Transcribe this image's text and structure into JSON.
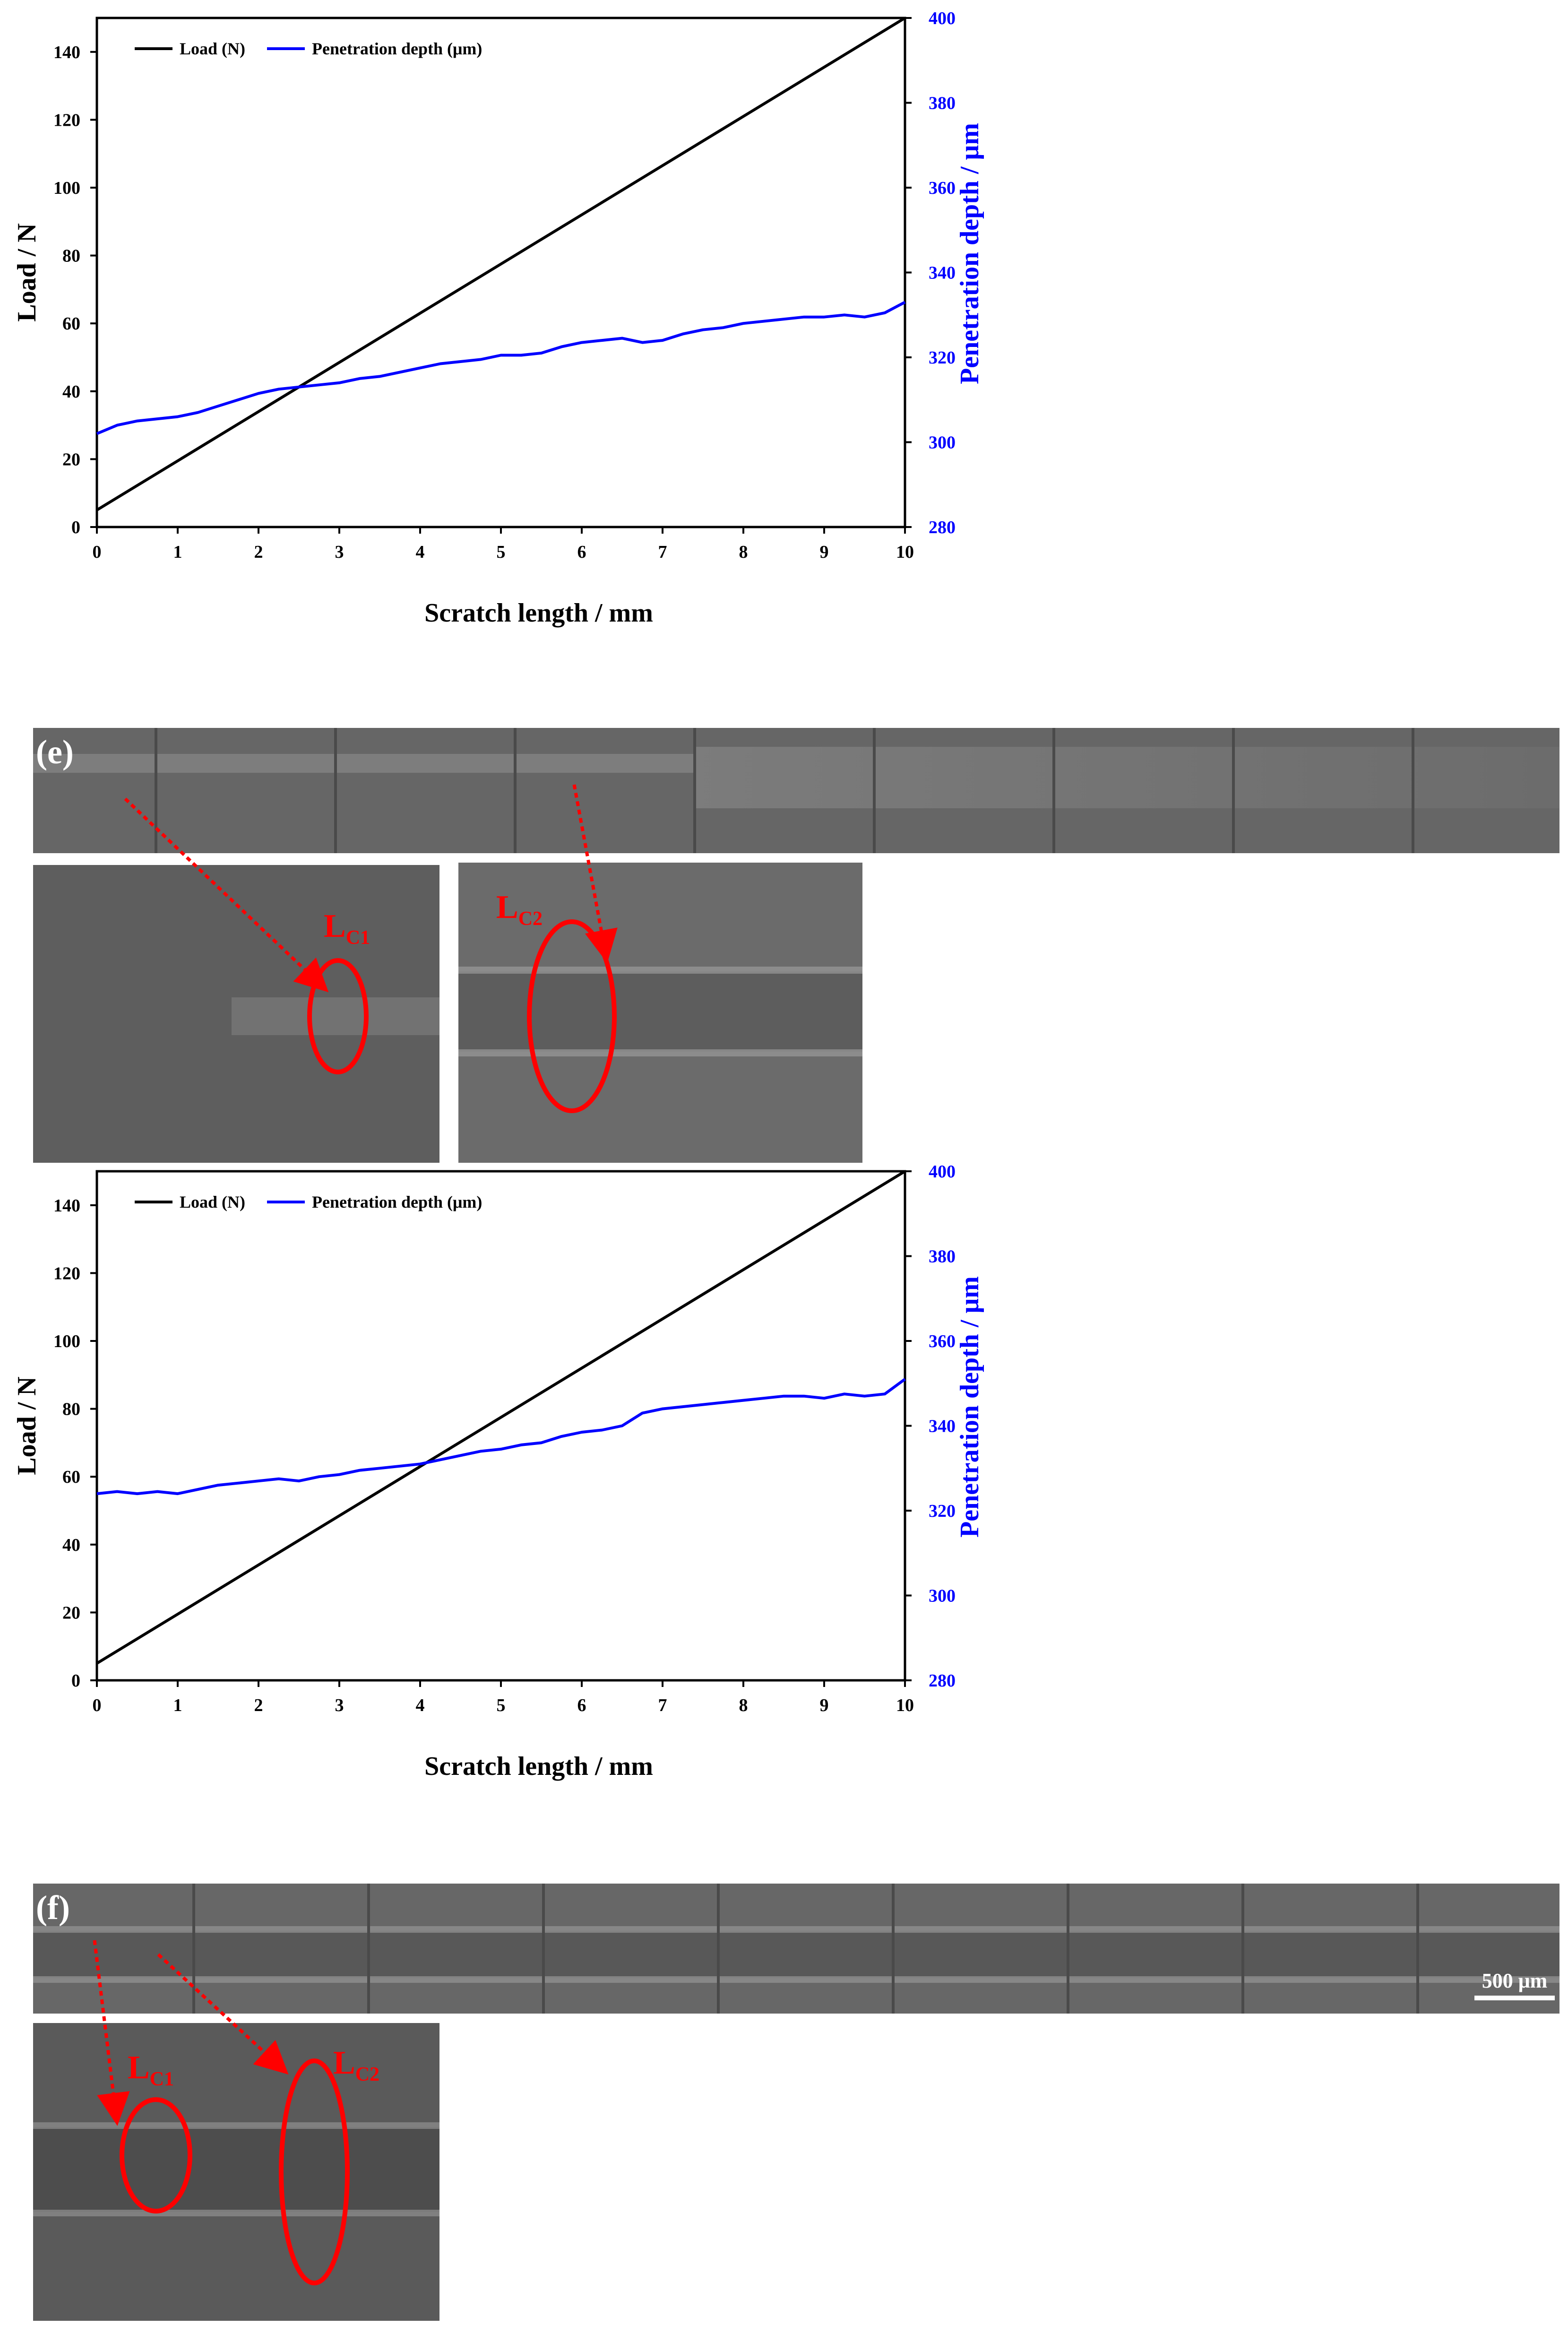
{
  "chart_data": [
    {
      "type": "line",
      "xlabel": "Scratch length / mm",
      "ylabel": "Load / N",
      "y2label": "Penetration depth / μm",
      "xlim": [
        0,
        10
      ],
      "ylim": [
        0,
        150
      ],
      "y2lim": [
        280,
        400
      ],
      "xticks": [
        "0",
        "1",
        "2",
        "3",
        "4",
        "5",
        "6",
        "7",
        "8",
        "9",
        "10"
      ],
      "yticks": [
        "0",
        "20",
        "40",
        "60",
        "80",
        "100",
        "120",
        "140"
      ],
      "y2ticks": [
        "280",
        "300",
        "320",
        "340",
        "360",
        "380",
        "400"
      ],
      "legend_placement": "top-left",
      "grid": false,
      "series": [
        {
          "name": "Load (N)",
          "axis": "left",
          "color": "#000000",
          "x": [
            0,
            10
          ],
          "y": [
            5,
            150
          ]
        },
        {
          "name": "Penetration depth (μm)",
          "axis": "right",
          "color": "#0000ff",
          "x": [
            0,
            0.25,
            0.5,
            0.75,
            1.0,
            1.25,
            1.5,
            1.75,
            2.0,
            2.25,
            2.5,
            2.75,
            3.0,
            3.25,
            3.5,
            3.75,
            4.0,
            4.25,
            4.5,
            4.75,
            5.0,
            5.25,
            5.5,
            5.75,
            6.0,
            6.25,
            6.5,
            6.75,
            7.0,
            7.25,
            7.5,
            7.75,
            8.0,
            8.25,
            8.5,
            8.75,
            9.0,
            9.25,
            9.5,
            9.75,
            10.0
          ],
          "y": [
            302,
            304,
            305,
            305.5,
            306,
            307,
            308.5,
            310,
            311.5,
            312.5,
            313,
            313.5,
            314,
            315,
            315.5,
            316.5,
            317.5,
            318.5,
            319,
            319.5,
            320.5,
            320.5,
            321,
            322.5,
            323.5,
            324,
            324.5,
            323.5,
            324,
            325.5,
            326.5,
            327,
            328,
            328.5,
            329,
            329.5,
            329.5,
            330,
            329.5,
            330.5,
            333
          ]
        }
      ]
    },
    {
      "type": "line",
      "xlabel": "Scratch length / mm",
      "ylabel": "Load / N",
      "y2label": "Penetration depth / μm",
      "xlim": [
        0,
        10
      ],
      "ylim": [
        0,
        150
      ],
      "y2lim": [
        280,
        400
      ],
      "xticks": [
        "0",
        "1",
        "2",
        "3",
        "4",
        "5",
        "6",
        "7",
        "8",
        "9",
        "10"
      ],
      "yticks": [
        "0",
        "20",
        "40",
        "60",
        "80",
        "100",
        "120",
        "140"
      ],
      "y2ticks": [
        "280",
        "300",
        "320",
        "340",
        "360",
        "380",
        "400"
      ],
      "legend_placement": "top-left",
      "grid": false,
      "series": [
        {
          "name": "Load (N)",
          "axis": "left",
          "color": "#000000",
          "x": [
            0,
            10
          ],
          "y": [
            5,
            150
          ]
        },
        {
          "name": "Penetration depth (μm)",
          "axis": "right",
          "color": "#0000ff",
          "x": [
            0,
            0.25,
            0.5,
            0.75,
            1.0,
            1.25,
            1.5,
            1.75,
            2.0,
            2.25,
            2.5,
            2.75,
            3.0,
            3.25,
            3.5,
            3.75,
            4.0,
            4.25,
            4.5,
            4.75,
            5.0,
            5.25,
            5.5,
            5.75,
            6.0,
            6.25,
            6.5,
            6.75,
            7.0,
            7.25,
            7.5,
            7.75,
            8.0,
            8.25,
            8.5,
            8.75,
            9.0,
            9.25,
            9.5,
            9.75,
            10.0
          ],
          "y": [
            324,
            324.5,
            324,
            324.5,
            324,
            325,
            326,
            326.5,
            327,
            327.5,
            327,
            328,
            328.5,
            329.5,
            330,
            330.5,
            331,
            332,
            333,
            334,
            334.5,
            335.5,
            336,
            337.5,
            338.5,
            339,
            340,
            343,
            344,
            344.5,
            345,
            345.5,
            346,
            346.5,
            347,
            347,
            346.5,
            347.5,
            347,
            347.5,
            351
          ]
        }
      ]
    }
  ],
  "panels": {
    "e": {
      "tag": "(e)"
    },
    "f": {
      "tag": "(f)",
      "scale_bar": "500 μm"
    }
  },
  "lc_labels": {
    "main": "L",
    "c1": "C1",
    "c2": "C2"
  },
  "colors": {
    "sem_gray": "#5c5c5c",
    "annotation": "#ff0000"
  }
}
